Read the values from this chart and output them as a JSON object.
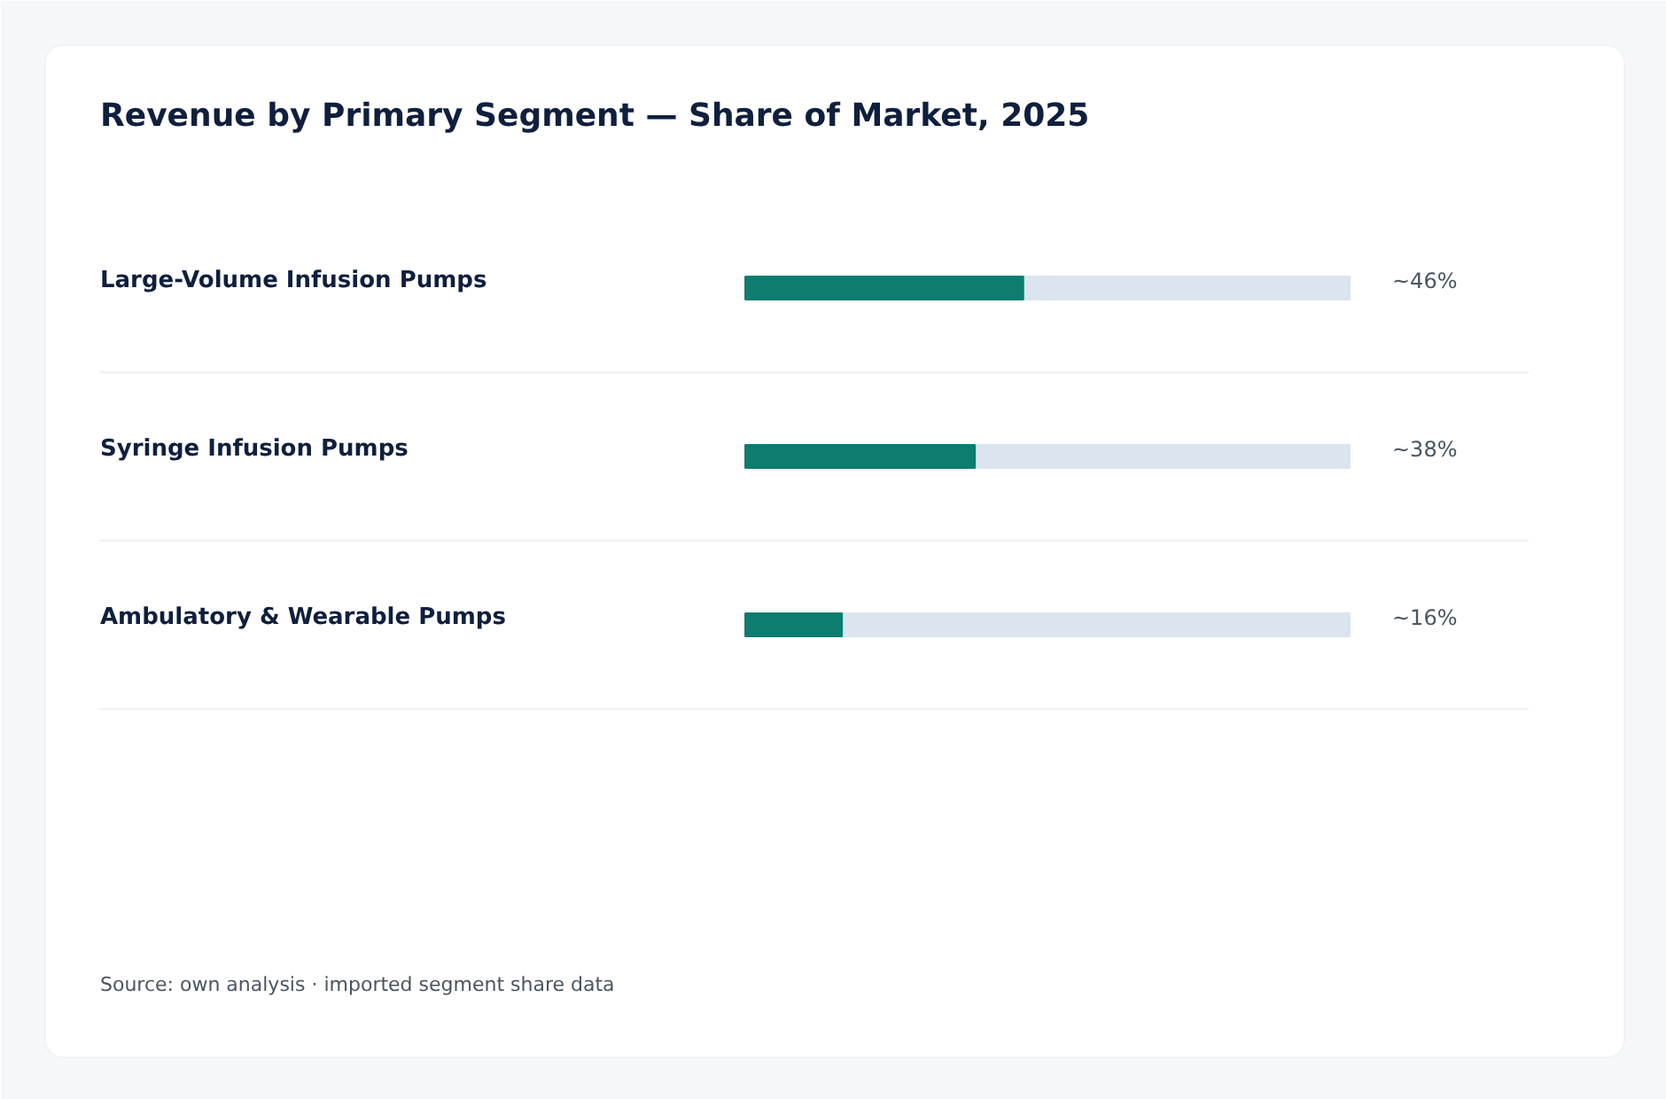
{
  "chart_data": {
    "type": "bar",
    "orientation": "horizontal",
    "title": "Revenue by Primary Segment — Share of Market, 2025",
    "categories": [
      "Large-Volume Infusion Pumps",
      "Syringe Infusion Pumps",
      "Ambulatory & Wearable Pumps"
    ],
    "values": [
      46,
      38,
      16
    ],
    "color": "#0e7c6e",
    "value_labels": [
      "~46%",
      "~38%",
      "~16%"
    ],
    "xlim": [
      0,
      100
    ],
    "tick_labels": false,
    "grid": "y",
    "annotations": [
      "Source: own analysis · imported segment share data"
    ]
  }
}
